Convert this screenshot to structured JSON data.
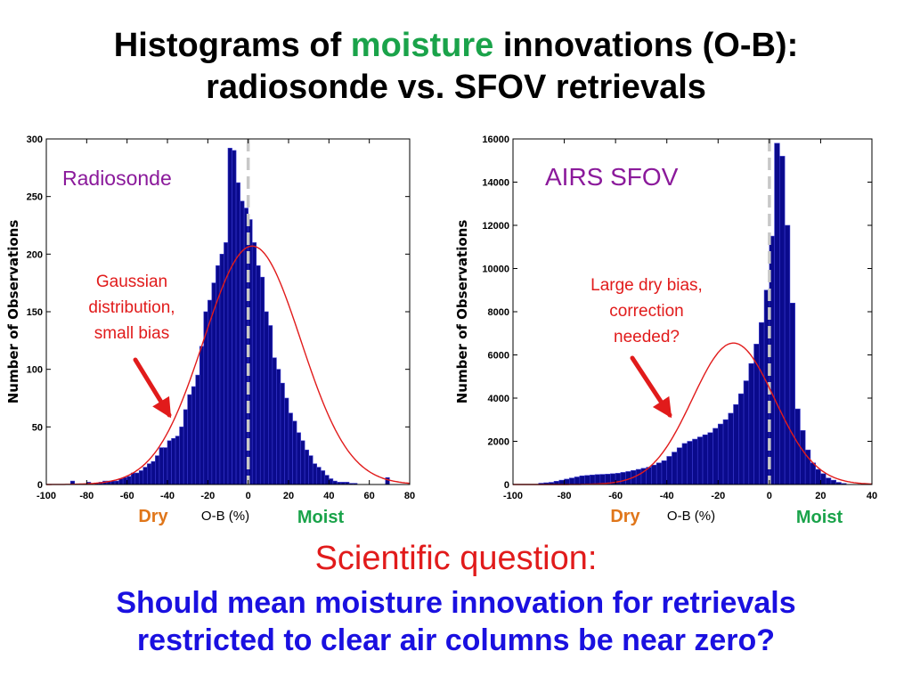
{
  "slide": {
    "title_part1": "Histograms of ",
    "title_highlight": "moisture",
    "title_part2": " innovations (O-B):",
    "title_line2": "radiosonde vs. SFOV retrievals",
    "question_heading": "Scientific question:",
    "question_line1": "Should mean moisture innovation for retrievals",
    "question_line2": "restricted to clear air columns be near zero?"
  },
  "colors": {
    "bar": "#0a0a8c",
    "gaussian": "#e11b1b",
    "dry": "#e0761a",
    "moist": "#1aa34a",
    "panel_label": "#8b1a9b",
    "annotation": "#e11b1b",
    "title_highlight": "#1aa34a",
    "question_heading": "#e11b1b",
    "question_body": "#1a10e0",
    "zero_line": "#c8c8c8"
  },
  "chart_data": [
    {
      "type": "bar",
      "panel_label": "Radiosonde",
      "xlabel": "O-B (%)",
      "ylabel": "Number of Observations",
      "dry_label": "Dry",
      "moist_label": "Moist",
      "xlim": [
        -100,
        80
      ],
      "ylim": [
        0,
        300
      ],
      "xticks": [
        -100,
        -80,
        -60,
        -40,
        -20,
        0,
        20,
        40,
        60,
        80
      ],
      "yticks": [
        0,
        50,
        100,
        150,
        200,
        250,
        300
      ],
      "grid": false,
      "annotation": [
        "Gaussian",
        "distribution,",
        "small bias"
      ],
      "bin_width": 2,
      "bin_start": -88,
      "values": [
        3,
        0,
        0,
        0,
        2,
        0,
        1,
        2,
        3,
        3,
        3,
        3,
        5,
        6,
        7,
        10,
        10,
        12,
        15,
        18,
        20,
        25,
        32,
        32,
        38,
        40,
        42,
        50,
        65,
        78,
        85,
        95,
        120,
        150,
        160,
        175,
        190,
        200,
        210,
        292,
        290,
        262,
        246,
        240,
        230,
        210,
        190,
        180,
        150,
        138,
        110,
        100,
        88,
        75,
        62,
        55,
        45,
        38,
        30,
        25,
        18,
        15,
        12,
        8,
        5,
        3,
        2,
        2,
        2,
        1,
        1,
        0,
        0,
        0,
        0,
        0,
        0,
        0,
        6
      ],
      "gaussian": {
        "mean": 2,
        "sd": 24,
        "peak": 207
      },
      "zero_line_x": 0
    },
    {
      "type": "bar",
      "panel_label": "AIRS SFOV",
      "xlabel": "O-B (%)",
      "ylabel": "Number of Observations",
      "dry_label": "Dry",
      "moist_label": "Moist",
      "xlim": [
        -100,
        40
      ],
      "ylim": [
        0,
        16000
      ],
      "xticks": [
        -100,
        -80,
        -60,
        -40,
        -20,
        0,
        20,
        40
      ],
      "yticks": [
        0,
        2000,
        4000,
        6000,
        8000,
        10000,
        12000,
        14000,
        16000
      ],
      "grid": false,
      "annotation": [
        "Large dry bias,",
        "correction",
        "needed?"
      ],
      "bin_width": 2,
      "bin_start": -90,
      "values": [
        60,
        80,
        100,
        150,
        200,
        250,
        300,
        350,
        400,
        420,
        440,
        460,
        470,
        480,
        500,
        520,
        560,
        600,
        650,
        700,
        750,
        800,
        900,
        1000,
        1100,
        1300,
        1500,
        1700,
        1900,
        2000,
        2100,
        2200,
        2300,
        2400,
        2600,
        2800,
        3000,
        3300,
        3700,
        4200,
        4800,
        5600,
        6500,
        7500,
        9000,
        11500,
        15800,
        15200,
        12000,
        8400,
        3500,
        2500,
        1600,
        1000,
        700,
        500,
        300,
        200,
        100,
        50
      ],
      "gaussian": {
        "mean": -14,
        "sd": 16,
        "peak": 6550
      },
      "zero_line_x": 0
    }
  ]
}
